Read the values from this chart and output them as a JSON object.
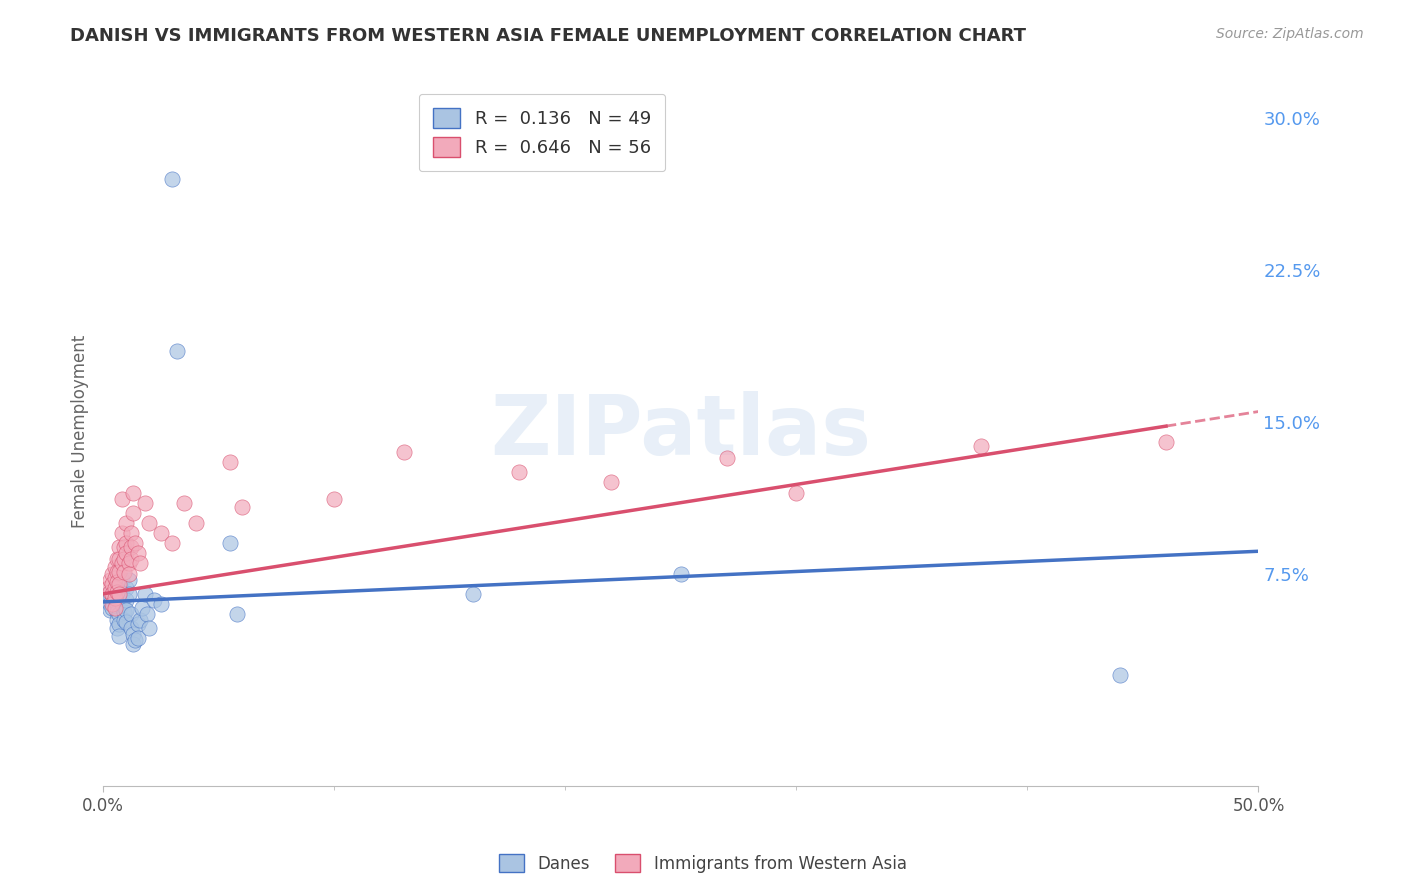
{
  "title": "DANISH VS IMMIGRANTS FROM WESTERN ASIA FEMALE UNEMPLOYMENT CORRELATION CHART",
  "source": "Source: ZipAtlas.com",
  "xlabel": "",
  "ylabel": "Female Unemployment",
  "xlim": [
    0.0,
    0.5
  ],
  "ylim": [
    -0.03,
    0.32
  ],
  "yticks": [
    0.075,
    0.15,
    0.225,
    0.3
  ],
  "ytick_labels": [
    "7.5%",
    "15.0%",
    "22.5%",
    "30.0%"
  ],
  "xtick_labels": [
    "0.0%",
    "50.0%"
  ],
  "danes_R": 0.136,
  "danes_N": 49,
  "immigrants_R": 0.646,
  "immigrants_N": 56,
  "danes_color": "#aac4e2",
  "immigrants_color": "#f2aabb",
  "danes_line_color": "#4472c4",
  "immigrants_line_color": "#d94f6e",
  "danes_line": {
    "x0": 0.0,
    "y0": 0.061,
    "x1": 0.5,
    "y1": 0.086
  },
  "immigrants_line": {
    "x0": 0.0,
    "y0": 0.065,
    "x1": 0.5,
    "y1": 0.155
  },
  "immigrants_line_solid_end": 0.46,
  "danes_scatter": [
    [
      0.002,
      0.065
    ],
    [
      0.003,
      0.063
    ],
    [
      0.003,
      0.06
    ],
    [
      0.003,
      0.057
    ],
    [
      0.004,
      0.062
    ],
    [
      0.004,
      0.058
    ],
    [
      0.005,
      0.066
    ],
    [
      0.005,
      0.062
    ],
    [
      0.006,
      0.06
    ],
    [
      0.006,
      0.056
    ],
    [
      0.006,
      0.052
    ],
    [
      0.006,
      0.048
    ],
    [
      0.007,
      0.07
    ],
    [
      0.007,
      0.065
    ],
    [
      0.007,
      0.055
    ],
    [
      0.007,
      0.05
    ],
    [
      0.007,
      0.044
    ],
    [
      0.008,
      0.072
    ],
    [
      0.008,
      0.065
    ],
    [
      0.008,
      0.06
    ],
    [
      0.009,
      0.056
    ],
    [
      0.009,
      0.052
    ],
    [
      0.01,
      0.068
    ],
    [
      0.01,
      0.062
    ],
    [
      0.01,
      0.057
    ],
    [
      0.01,
      0.051
    ],
    [
      0.011,
      0.072
    ],
    [
      0.011,
      0.065
    ],
    [
      0.012,
      0.055
    ],
    [
      0.012,
      0.048
    ],
    [
      0.013,
      0.045
    ],
    [
      0.013,
      0.04
    ],
    [
      0.014,
      0.042
    ],
    [
      0.015,
      0.05
    ],
    [
      0.015,
      0.043
    ],
    [
      0.016,
      0.052
    ],
    [
      0.017,
      0.058
    ],
    [
      0.018,
      0.065
    ],
    [
      0.019,
      0.055
    ],
    [
      0.02,
      0.048
    ],
    [
      0.022,
      0.062
    ],
    [
      0.025,
      0.06
    ],
    [
      0.03,
      0.27
    ],
    [
      0.032,
      0.185
    ],
    [
      0.055,
      0.09
    ],
    [
      0.058,
      0.055
    ],
    [
      0.16,
      0.065
    ],
    [
      0.25,
      0.075
    ],
    [
      0.44,
      0.025
    ]
  ],
  "immigrants_scatter": [
    [
      0.002,
      0.068
    ],
    [
      0.003,
      0.072
    ],
    [
      0.003,
      0.066
    ],
    [
      0.004,
      0.075
    ],
    [
      0.004,
      0.07
    ],
    [
      0.004,
      0.065
    ],
    [
      0.004,
      0.06
    ],
    [
      0.005,
      0.078
    ],
    [
      0.005,
      0.073
    ],
    [
      0.005,
      0.068
    ],
    [
      0.005,
      0.063
    ],
    [
      0.005,
      0.058
    ],
    [
      0.006,
      0.082
    ],
    [
      0.006,
      0.076
    ],
    [
      0.006,
      0.071
    ],
    [
      0.006,
      0.066
    ],
    [
      0.007,
      0.088
    ],
    [
      0.007,
      0.082
    ],
    [
      0.007,
      0.076
    ],
    [
      0.007,
      0.07
    ],
    [
      0.007,
      0.065
    ],
    [
      0.008,
      0.112
    ],
    [
      0.008,
      0.095
    ],
    [
      0.008,
      0.08
    ],
    [
      0.009,
      0.088
    ],
    [
      0.009,
      0.082
    ],
    [
      0.009,
      0.076
    ],
    [
      0.01,
      0.1
    ],
    [
      0.01,
      0.09
    ],
    [
      0.01,
      0.085
    ],
    [
      0.011,
      0.08
    ],
    [
      0.011,
      0.075
    ],
    [
      0.012,
      0.095
    ],
    [
      0.012,
      0.088
    ],
    [
      0.012,
      0.082
    ],
    [
      0.013,
      0.115
    ],
    [
      0.013,
      0.105
    ],
    [
      0.014,
      0.09
    ],
    [
      0.015,
      0.085
    ],
    [
      0.016,
      0.08
    ],
    [
      0.018,
      0.11
    ],
    [
      0.02,
      0.1
    ],
    [
      0.025,
      0.095
    ],
    [
      0.03,
      0.09
    ],
    [
      0.035,
      0.11
    ],
    [
      0.04,
      0.1
    ],
    [
      0.055,
      0.13
    ],
    [
      0.06,
      0.108
    ],
    [
      0.1,
      0.112
    ],
    [
      0.13,
      0.135
    ],
    [
      0.18,
      0.125
    ],
    [
      0.22,
      0.12
    ],
    [
      0.27,
      0.132
    ],
    [
      0.3,
      0.115
    ],
    [
      0.38,
      0.138
    ],
    [
      0.46,
      0.14
    ]
  ],
  "watermark_text": "ZIPatlas",
  "background_color": "#ffffff",
  "grid_color": "#dddddd"
}
